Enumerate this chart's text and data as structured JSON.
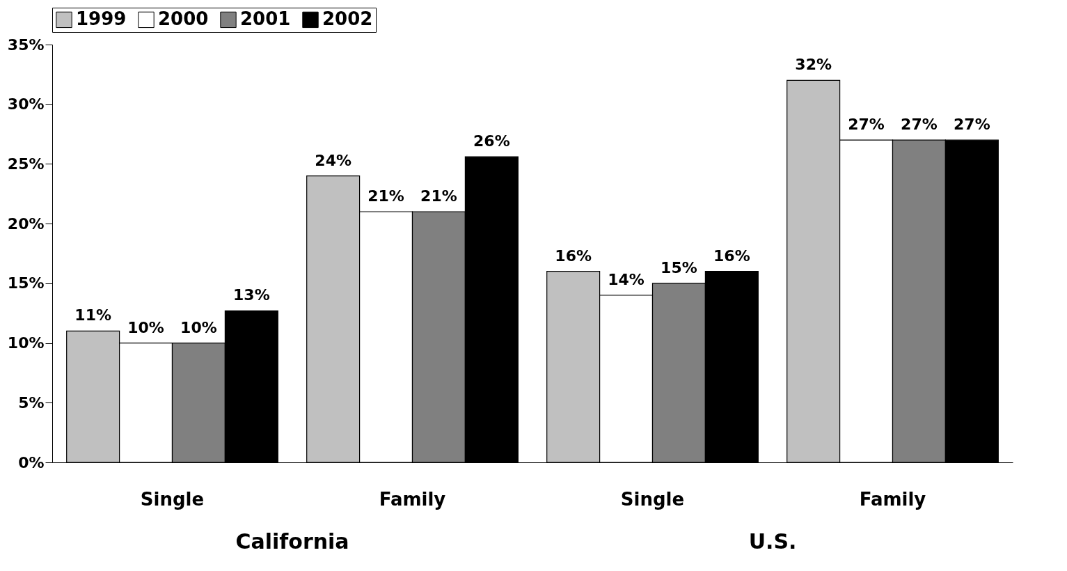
{
  "chart_data": {
    "type": "bar",
    "categories": [
      "Single",
      "Family",
      "Single",
      "Family"
    ],
    "series": [
      {
        "name": "1999",
        "color": "#c0c0c0",
        "values": [
          11,
          24,
          16,
          32
        ],
        "value_labels": [
          "11%",
          "24%",
          "16%",
          "32%"
        ]
      },
      {
        "name": "2000",
        "color": "#ffffff",
        "values": [
          10,
          21,
          14,
          27
        ],
        "value_labels": [
          "10%",
          "21%",
          "14%",
          "27%"
        ]
      },
      {
        "name": "2001",
        "color": "#808080",
        "values": [
          10,
          21,
          15,
          27
        ],
        "value_labels": [
          "10%",
          "21%",
          "15%",
          "27%"
        ]
      },
      {
        "name": "2002",
        "color": "#000000",
        "values": [
          12.7,
          25.6,
          16,
          27
        ],
        "value_labels": [
          "13%",
          "26%",
          "16%",
          "27%"
        ]
      }
    ],
    "ylim": [
      0,
      35
    ],
    "yticks": [
      {
        "value": 0,
        "label": "0%"
      },
      {
        "value": 5,
        "label": "5%"
      },
      {
        "value": 10,
        "label": "10%"
      },
      {
        "value": 15,
        "label": "15%"
      },
      {
        "value": 20,
        "label": "20%"
      },
      {
        "value": 25,
        "label": "25%"
      },
      {
        "value": 30,
        "label": "30%"
      },
      {
        "value": 35,
        "label": "35%"
      }
    ],
    "annotations": [
      "California",
      "U.S."
    ],
    "legend": "top",
    "grid": false
  }
}
